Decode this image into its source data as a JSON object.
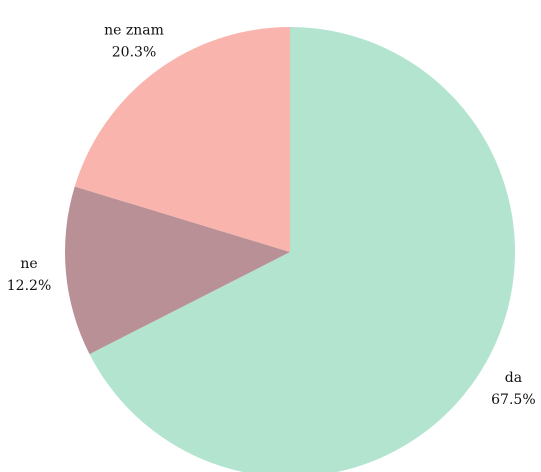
{
  "chart_data": {
    "type": "pie",
    "categories": [
      "da",
      "ne",
      "ne znam"
    ],
    "values": [
      67.5,
      12.2,
      20.3
    ],
    "value_labels": [
      "67.5%",
      "12.2%",
      "20.3%"
    ],
    "colors": [
      "#b3e4d0",
      "#b89096",
      "#f9b5ad"
    ]
  }
}
